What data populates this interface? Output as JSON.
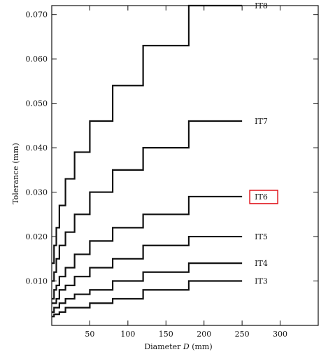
{
  "chart_data": {
    "type": "line",
    "title": "",
    "xlabel": "Diameter D (mm)",
    "xlabel_prefix": "Diameter",
    "xlabel_var": "D",
    "xlabel_unit": "(mm)",
    "ylabel": "Tolerance (mm)",
    "xlim": [
      0,
      350
    ],
    "ylim": [
      0,
      0.072
    ],
    "x_ticks": [
      50,
      100,
      150,
      200,
      250,
      300
    ],
    "x_tick_labels": [
      "50",
      "100",
      "150",
      "200",
      "250",
      "300"
    ],
    "y_ticks": [
      0.01,
      0.02,
      0.03,
      0.04,
      0.05,
      0.06,
      0.07
    ],
    "y_tick_labels": [
      "0.010",
      "0.020",
      "0.030",
      "0.040",
      "0.050",
      "0.060",
      "0.070"
    ],
    "grid": false,
    "step": true,
    "series": [
      {
        "name": "IT3",
        "x": [
          0,
          3,
          6,
          10,
          18,
          30,
          50,
          80,
          120,
          180,
          250
        ],
        "values": [
          0.002,
          0.0025,
          0.0025,
          0.003,
          0.004,
          0.004,
          0.005,
          0.006,
          0.008,
          0.01,
          0.01
        ]
      },
      {
        "name": "IT4",
        "x": [
          0,
          3,
          6,
          10,
          18,
          30,
          50,
          80,
          120,
          180,
          250
        ],
        "values": [
          0.003,
          0.004,
          0.004,
          0.005,
          0.006,
          0.007,
          0.008,
          0.01,
          0.012,
          0.014,
          0.014
        ]
      },
      {
        "name": "IT5",
        "x": [
          0,
          3,
          6,
          10,
          18,
          30,
          50,
          80,
          120,
          180,
          250
        ],
        "values": [
          0.005,
          0.005,
          0.006,
          0.008,
          0.009,
          0.011,
          0.013,
          0.015,
          0.018,
          0.02,
          0.02
        ]
      },
      {
        "name": "IT6",
        "x": [
          0,
          3,
          6,
          10,
          18,
          30,
          50,
          80,
          120,
          180,
          250
        ],
        "values": [
          0.006,
          0.008,
          0.009,
          0.011,
          0.013,
          0.016,
          0.019,
          0.022,
          0.025,
          0.029,
          0.029
        ]
      },
      {
        "name": "IT7",
        "x": [
          0,
          3,
          6,
          10,
          18,
          30,
          50,
          80,
          120,
          180,
          250
        ],
        "values": [
          0.01,
          0.012,
          0.015,
          0.018,
          0.021,
          0.025,
          0.03,
          0.035,
          0.04,
          0.046,
          0.046
        ]
      },
      {
        "name": "IT8",
        "x": [
          0,
          3,
          6,
          10,
          18,
          30,
          50,
          80,
          120,
          180,
          250
        ],
        "values": [
          0.014,
          0.018,
          0.022,
          0.027,
          0.033,
          0.039,
          0.046,
          0.054,
          0.063,
          0.072,
          0.072
        ]
      }
    ],
    "highlighted_series": "IT6",
    "highlight_color": "#e11b22"
  }
}
